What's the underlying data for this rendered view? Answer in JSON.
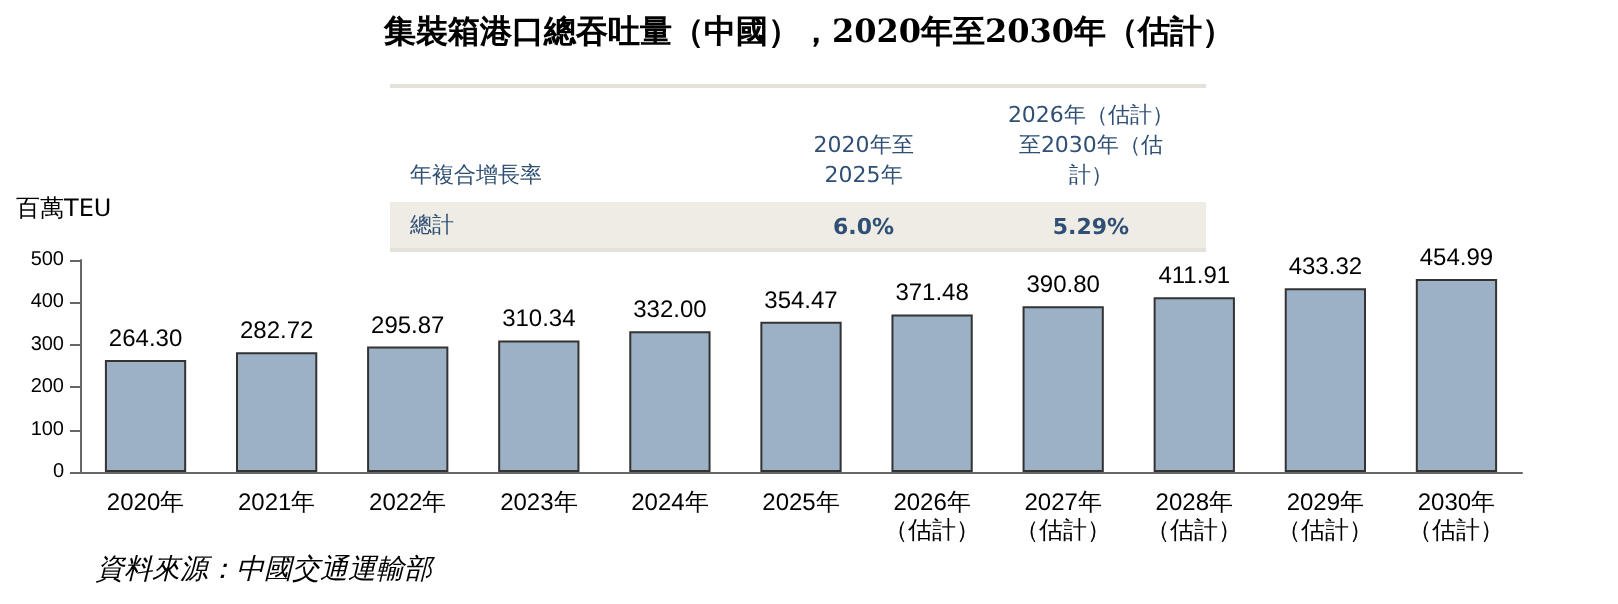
{
  "chart_data": {
    "type": "bar",
    "title": "集裝箱港口總吞吐量（中國），2020年至2030年（估計）",
    "ylabel": "百萬TEU",
    "categories": [
      "2020年",
      "2021年",
      "2022年",
      "2023年",
      "2024年",
      "2025年",
      "2026年（估計）",
      "2027年（估計）",
      "2028年（估計）",
      "2029年（估計）",
      "2030年（估計）"
    ],
    "values": [
      264.3,
      282.72,
      295.87,
      310.34,
      332.0,
      354.47,
      371.48,
      390.8,
      411.91,
      433.32,
      454.99
    ],
    "value_labels": [
      "264.30",
      "282.72",
      "295.87",
      "310.34",
      "332.00",
      "354.47",
      "371.48",
      "390.80",
      "411.91",
      "433.32",
      "454.99"
    ],
    "color": "#9cb0c6",
    "ylim": [
      0,
      500
    ],
    "yticks": [
      0,
      100,
      200,
      300,
      400,
      500
    ],
    "grid": false,
    "annotations": [
      "年複合增長率",
      "2020年至2025年",
      "2026年（估計）至2030年（估計）",
      "總計",
      "6.0%",
      "5.29%",
      "資料來源：中國交通運輸部"
    ]
  }
}
